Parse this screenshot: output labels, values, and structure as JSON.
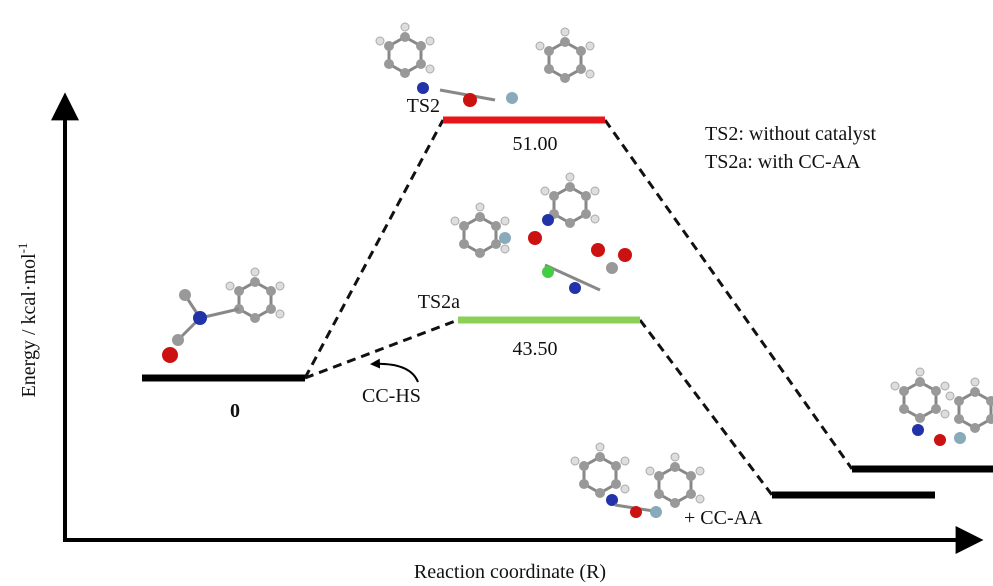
{
  "axes": {
    "y_label": "Energy / kcal·mol",
    "y_label_sup": "-1",
    "x_label": "Reaction coordinate (R)"
  },
  "levels": [
    {
      "label": "0"
    },
    {
      "name": "TS2",
      "label": "51.00"
    },
    {
      "name": "TS2a",
      "label": "43.50"
    }
  ],
  "annotations": {
    "cc_hs": "CC-HS",
    "product_note": "+ CC-AA"
  },
  "legend": [
    "TS2: without catalyst",
    "TS2a: with CC-AA"
  ]
}
